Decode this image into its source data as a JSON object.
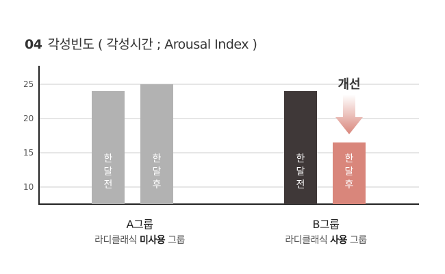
{
  "title": {
    "number": "04",
    "text": "각성빈도 ( 각성시간 ; Arousal Index )"
  },
  "chart_data": {
    "type": "bar",
    "y_ticks": [
      10,
      15,
      20,
      25
    ],
    "ylim": [
      7.5,
      27.5
    ],
    "grid": true,
    "bars": [
      {
        "group": "A그룹",
        "label": [
          "한",
          "달",
          "전"
        ],
        "value": 24,
        "color": "#b2b2b2"
      },
      {
        "group": "A그룹",
        "label": [
          "한",
          "달",
          "후"
        ],
        "value": 25,
        "color": "#b2b2b2"
      },
      {
        "group": "B그룹",
        "label": [
          "한",
          "달",
          "전"
        ],
        "value": 24,
        "color": "#3f3838"
      },
      {
        "group": "B그룹",
        "label": [
          "한",
          "달",
          "후"
        ],
        "value": 16.5,
        "color": "#d9867b"
      }
    ],
    "annotation": {
      "text": "개선",
      "arrow_color": "#d9867b"
    }
  },
  "groups": [
    {
      "name": "A그룹",
      "desc_prefix": "라디클래식 ",
      "desc_bold": "미사용",
      "desc_suffix": " 그룹"
    },
    {
      "name": "B그룹",
      "desc_prefix": "라디클래식 ",
      "desc_bold": "사용",
      "desc_suffix": " 그룹"
    }
  ]
}
